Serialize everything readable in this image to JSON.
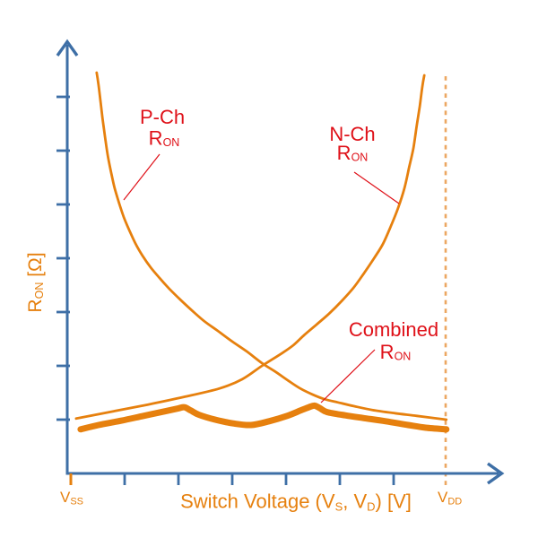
{
  "colors": {
    "curve_orange": "#E6800E",
    "label_red": "#DF1119",
    "axis_blue": "#3E6FA6",
    "dashed_orange": "#ECA761"
  },
  "labels": {
    "p_ch": {
      "title": "P-Ch",
      "r": "R",
      "r_sub": "ON"
    },
    "n_ch": {
      "title": "N-Ch",
      "r": "R",
      "r_sub": "ON"
    },
    "combined": {
      "title": "Combined",
      "r": "R",
      "r_sub": "ON"
    },
    "y_axis": {
      "r": "R",
      "r_sub": "ON",
      "units": " [Ω]"
    },
    "x_axis": {
      "pre": "Switch Voltage (V",
      "sub1": "S",
      "mid": ", V",
      "sub2": "D",
      "post": ") [V]"
    },
    "x_min": {
      "main": "V",
      "sub": "SS"
    },
    "x_max": {
      "main": "V",
      "sub": "DD"
    }
  },
  "chart_data": {
    "type": "line",
    "title": "",
    "xlabel": "Switch Voltage (VS, VD) [V]",
    "ylabel": "RON [Ω]",
    "x_axis_range_labels": [
      "VSS",
      "VDD"
    ],
    "x_units": "normalized switch voltage, 0 = VSS, 1 = VDD",
    "y_units": "on-resistance in axis tick units (no numeric labels shown)",
    "grid": false,
    "legend": "inline annotations with red pointer lines",
    "x_tick_count": 8,
    "y_tick_count": 7,
    "series": [
      {
        "name": "P-Ch RON",
        "style": "thin",
        "points": [
          [
            0.069,
            7.45
          ],
          [
            0.074,
            7.22
          ],
          [
            0.079,
            6.93
          ],
          [
            0.084,
            6.63
          ],
          [
            0.091,
            6.27
          ],
          [
            0.098,
            5.93
          ],
          [
            0.108,
            5.58
          ],
          [
            0.117,
            5.3
          ],
          [
            0.129,
            5.02
          ],
          [
            0.141,
            4.77
          ],
          [
            0.156,
            4.52
          ],
          [
            0.172,
            4.28
          ],
          [
            0.191,
            4.05
          ],
          [
            0.213,
            3.83
          ],
          [
            0.237,
            3.63
          ],
          [
            0.263,
            3.43
          ],
          [
            0.292,
            3.23
          ],
          [
            0.323,
            3.03
          ],
          [
            0.356,
            2.83
          ],
          [
            0.392,
            2.65
          ],
          [
            0.431,
            2.45
          ],
          [
            0.469,
            2.27
          ],
          [
            0.51,
            2.05
          ],
          [
            0.548,
            1.88
          ],
          [
            0.581,
            1.72
          ],
          [
            0.612,
            1.58
          ],
          [
            0.644,
            1.47
          ],
          [
            0.677,
            1.38
          ],
          [
            0.713,
            1.32
          ],
          [
            0.756,
            1.25
          ],
          [
            0.804,
            1.18
          ],
          [
            0.864,
            1.12
          ],
          [
            0.923,
            1.07
          ],
          [
            1.002,
            1.0
          ]
        ]
      },
      {
        "name": "N-Ch RON",
        "style": "thin",
        "points": [
          [
            0.014,
            1.02
          ],
          [
            0.11,
            1.15
          ],
          [
            0.206,
            1.28
          ],
          [
            0.301,
            1.42
          ],
          [
            0.397,
            1.58
          ],
          [
            0.457,
            1.75
          ],
          [
            0.51,
            2.0
          ],
          [
            0.56,
            2.22
          ],
          [
            0.593,
            2.38
          ],
          [
            0.624,
            2.58
          ],
          [
            0.656,
            2.77
          ],
          [
            0.689,
            2.97
          ],
          [
            0.722,
            3.2
          ],
          [
            0.754,
            3.45
          ],
          [
            0.782,
            3.72
          ],
          [
            0.809,
            4.0
          ],
          [
            0.833,
            4.27
          ],
          [
            0.854,
            4.6
          ],
          [
            0.873,
            4.93
          ],
          [
            0.89,
            5.3
          ],
          [
            0.902,
            5.67
          ],
          [
            0.914,
            6.05
          ],
          [
            0.923,
            6.47
          ],
          [
            0.931,
            6.83
          ],
          [
            0.938,
            7.2
          ],
          [
            0.943,
            7.4
          ]
        ]
      },
      {
        "name": "Combined RON",
        "style": "thick",
        "points": [
          [
            0.026,
            0.82
          ],
          [
            0.074,
            0.9
          ],
          [
            0.134,
            0.98
          ],
          [
            0.194,
            1.07
          ],
          [
            0.254,
            1.16
          ],
          [
            0.287,
            1.21
          ],
          [
            0.303,
            1.23
          ],
          [
            0.32,
            1.17
          ],
          [
            0.342,
            1.09
          ],
          [
            0.385,
            1.0
          ],
          [
            0.433,
            0.93
          ],
          [
            0.481,
            0.9
          ],
          [
            0.529,
            0.97
          ],
          [
            0.577,
            1.07
          ],
          [
            0.613,
            1.17
          ],
          [
            0.635,
            1.23
          ],
          [
            0.65,
            1.26
          ],
          [
            0.665,
            1.21
          ],
          [
            0.684,
            1.14
          ],
          [
            0.732,
            1.08
          ],
          [
            0.78,
            1.03
          ],
          [
            0.84,
            0.97
          ],
          [
            0.9,
            0.9
          ],
          [
            0.947,
            0.85
          ],
          [
            1.002,
            0.82
          ]
        ]
      }
    ]
  }
}
